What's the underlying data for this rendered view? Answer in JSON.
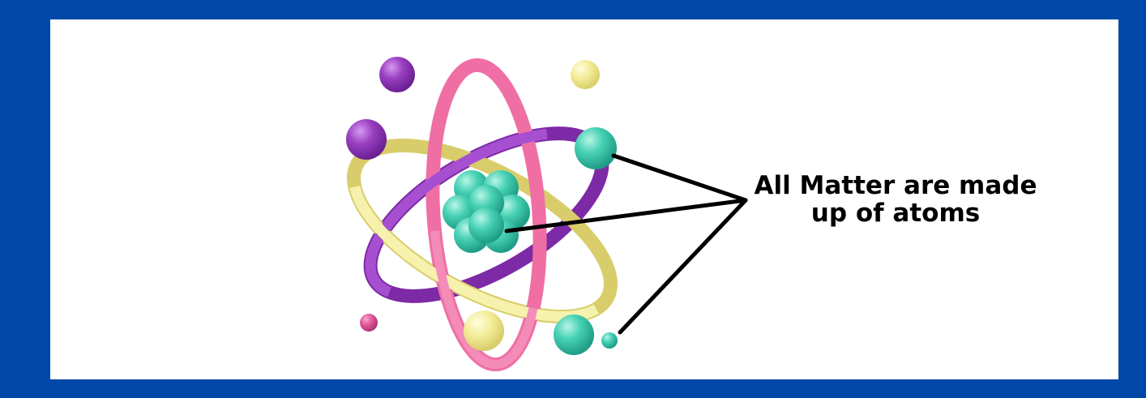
{
  "caption": {
    "line1": "All Matter are made",
    "line2": "up of atoms"
  },
  "colors": {
    "frame_blue": "#0048a8",
    "background": "#ffffff",
    "ring_pink": "#ef6fa5",
    "ring_yellow": "#f2ee9e",
    "ring_purple": "#9e45c9",
    "sphere_teal": "#47d1b4",
    "sphere_purple": "#9a40c2",
    "sphere_yellow": "#f3ec96",
    "sphere_pink": "#e0579a",
    "pointer_line": "#000000"
  },
  "icons": {
    "illustration": "atom-model-icon"
  }
}
